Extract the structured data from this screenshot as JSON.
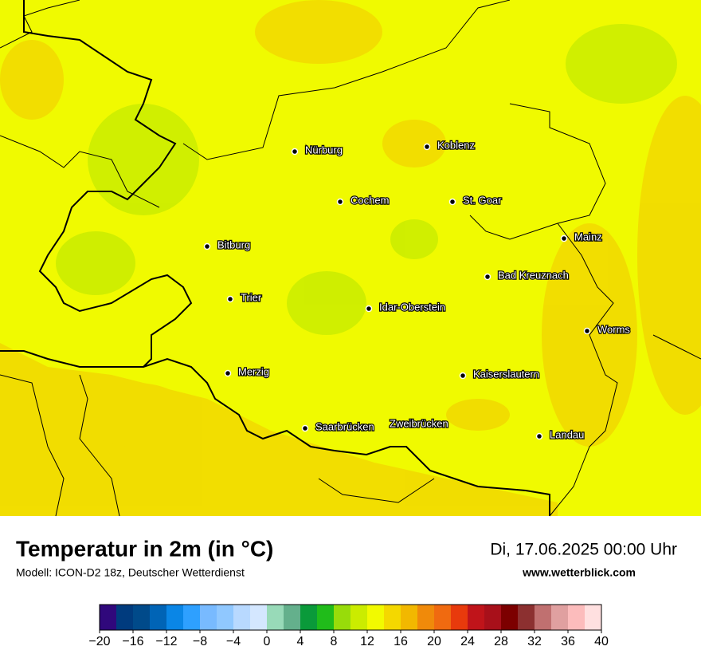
{
  "map": {
    "cities": [
      "Nürburg",
      "Koblenz",
      "Cochem",
      "St. Goar",
      "Mainz",
      "Bitburg",
      "Bad Kreuznach",
      "Trier",
      "Idar-Oberstein",
      "Worms",
      "Merzig",
      "Kaiserslautern",
      "Saarbrücken",
      "Zweibrücken",
      "Landau"
    ]
  },
  "footer": {
    "title": "Temperatur in 2m (in °C)",
    "subtitle": "Modell: ICON-D2 18z, Deutscher Wetterdienst",
    "date": "Di, 17.06.2025 00:00 Uhr",
    "website": "www.wetterblick.com"
  },
  "colorbar": {
    "lim": [
      -20,
      40
    ],
    "ticks": [
      {
        "value": -20,
        "label": "−20"
      },
      {
        "value": -16,
        "label": "−16"
      },
      {
        "value": -12,
        "label": "−12"
      },
      {
        "value": -8,
        "label": "−8"
      },
      {
        "value": -4,
        "label": "−4"
      },
      0,
      4,
      8,
      12,
      16,
      20,
      24,
      28,
      32,
      36,
      40
    ],
    "colors": [
      "#30087c",
      "#003b7e",
      "#004a8a",
      "#0064b6",
      "#0a86e6",
      "#2ea0ff",
      "#78baff",
      "#90c8ff",
      "#b8d9ff",
      "#d4e7ff",
      "#98dab8",
      "#64b08c",
      "#0a9a3a",
      "#20bc1a",
      "#98dc0a",
      "#cbec00",
      "#f2fa00",
      "#f4d800",
      "#f2b800",
      "#f08a0a",
      "#f06a10",
      "#e83a0c",
      "#c0141a",
      "#a8101a",
      "#7c0000",
      "#8c3030",
      "#c07070",
      "#e0a0a0",
      "#fcbcbc",
      "#ffe0e0"
    ]
  }
}
